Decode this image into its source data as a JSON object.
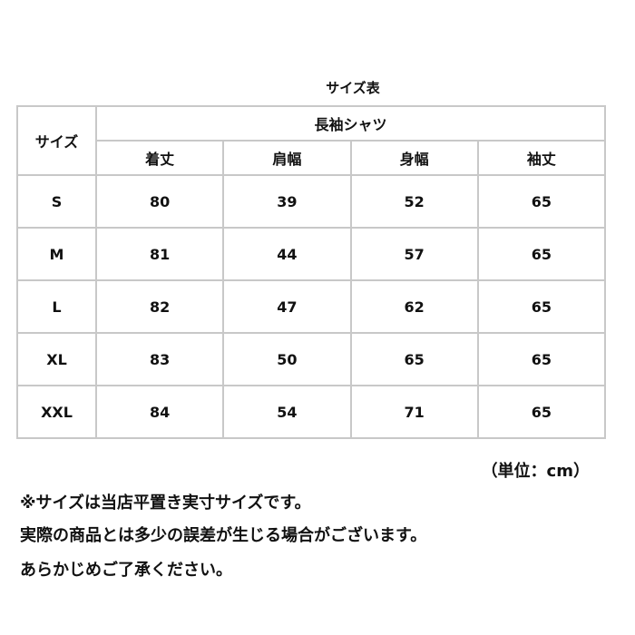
{
  "title": "サイズ表",
  "header": {
    "size": "サイズ",
    "group": "長袖シャツ",
    "columns": [
      "着丈",
      "肩幅",
      "身幅",
      "袖丈"
    ]
  },
  "rows": [
    {
      "size": "S",
      "values": [
        "80",
        "39",
        "52",
        "65"
      ]
    },
    {
      "size": "M",
      "values": [
        "81",
        "44",
        "57",
        "65"
      ]
    },
    {
      "size": "L",
      "values": [
        "82",
        "47",
        "62",
        "65"
      ]
    },
    {
      "size": "XL",
      "values": [
        "83",
        "50",
        "65",
        "65"
      ]
    },
    {
      "size": "XXL",
      "values": [
        "84",
        "54",
        "71",
        "65"
      ]
    }
  ],
  "unit": "（単位：cm）",
  "notes": [
    "※サイズは当店平置き実寸サイズです。",
    "実際の商品とは多少の誤差が生じる場合がございます。",
    "あらかじめご了承ください。"
  ]
}
